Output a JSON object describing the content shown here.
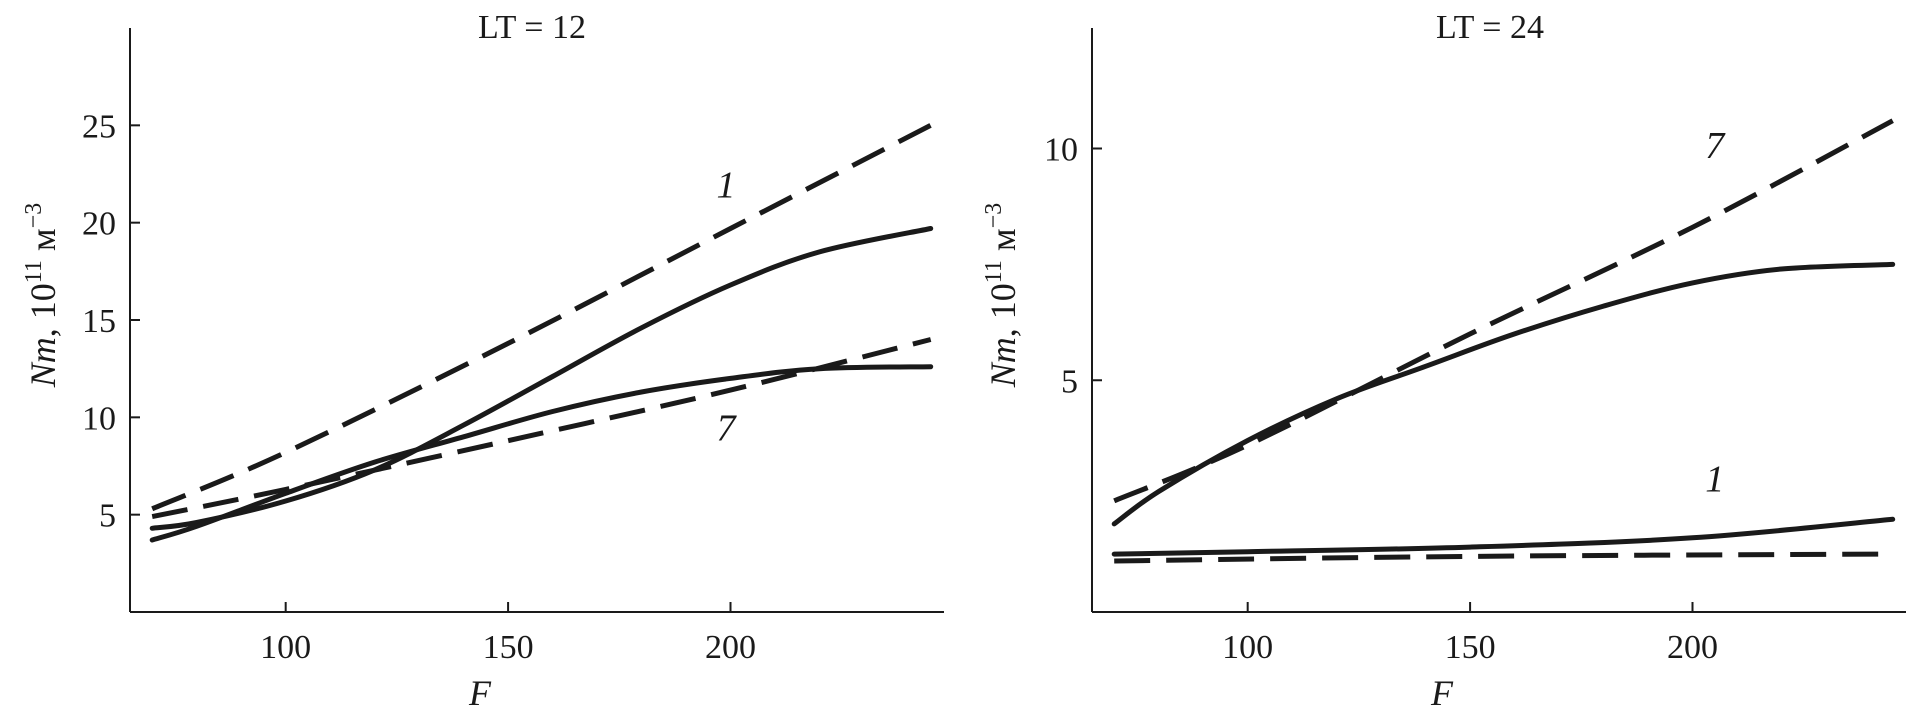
{
  "chart_data": [
    {
      "type": "line",
      "title": "LT = 12",
      "xlabel": "F",
      "ylabel_main": "Nm",
      "ylabel_unit": ", 10",
      "ylabel_unit_exp": "11",
      "ylabel_unit_suffix": " м",
      "ylabel_unit_suffix_exp": "−3",
      "xlim": [
        65,
        248
      ],
      "ylim": [
        0,
        30
      ],
      "xticks": [
        100,
        150,
        200
      ],
      "yticks": [
        5,
        10,
        15,
        20,
        25
      ],
      "series": [
        {
          "name": "1",
          "style": "dashed",
          "x": [
            70,
            100,
            150,
            200,
            245
          ],
          "y": [
            5.3,
            8.2,
            13.8,
            19.7,
            25.0
          ]
        },
        {
          "name": "1",
          "style": "solid",
          "x": [
            70,
            80,
            100,
            120,
            140,
            160,
            180,
            200,
            220,
            245
          ],
          "y": [
            4.3,
            4.6,
            5.7,
            7.3,
            9.6,
            12.1,
            14.6,
            16.8,
            18.5,
            19.7
          ]
        },
        {
          "name": "7",
          "style": "dashed",
          "x": [
            70,
            100,
            150,
            200,
            245
          ],
          "y": [
            4.9,
            6.3,
            8.8,
            11.4,
            14.0
          ]
        },
        {
          "name": "7",
          "style": "solid",
          "x": [
            70,
            80,
            100,
            120,
            140,
            160,
            180,
            200,
            220,
            245
          ],
          "y": [
            3.7,
            4.4,
            6.1,
            7.7,
            9.0,
            10.3,
            11.3,
            12.0,
            12.5,
            12.6
          ]
        }
      ],
      "curve_labels": [
        {
          "text": "1",
          "x": 199,
          "y": 21.3
        },
        {
          "text": "7",
          "x": 199,
          "y": 8.8
        }
      ]
    },
    {
      "type": "line",
      "title": "LT = 24",
      "xlabel": "F",
      "ylabel_main": "Nm",
      "ylabel_unit": ", 10",
      "ylabel_unit_exp": "11",
      "ylabel_unit_suffix": " м",
      "ylabel_unit_suffix_exp": "−3",
      "xlim": [
        65,
        248
      ],
      "ylim": [
        0,
        12.6
      ],
      "xticks": [
        100,
        150,
        200
      ],
      "yticks": [
        5,
        10
      ],
      "series": [
        {
          "name": "7",
          "style": "dashed",
          "x": [
            70,
            100,
            150,
            200,
            245
          ],
          "y": [
            2.4,
            3.6,
            6.0,
            8.3,
            10.6
          ]
        },
        {
          "name": "7",
          "style": "solid",
          "x": [
            70,
            80,
            100,
            120,
            140,
            160,
            180,
            200,
            220,
            245
          ],
          "y": [
            1.9,
            2.6,
            3.7,
            4.6,
            5.3,
            6.0,
            6.6,
            7.1,
            7.4,
            7.5
          ]
        },
        {
          "name": "1",
          "style": "dashed",
          "x": [
            70,
            150,
            245
          ],
          "y": [
            1.1,
            1.2,
            1.25
          ]
        },
        {
          "name": "1",
          "style": "solid",
          "x": [
            70,
            100,
            150,
            200,
            245
          ],
          "y": [
            1.25,
            1.3,
            1.4,
            1.6,
            2.0
          ]
        }
      ],
      "curve_labels": [
        {
          "text": "7",
          "x": 205,
          "y": 9.8
        },
        {
          "text": "1",
          "x": 205,
          "y": 2.6
        }
      ]
    }
  ]
}
